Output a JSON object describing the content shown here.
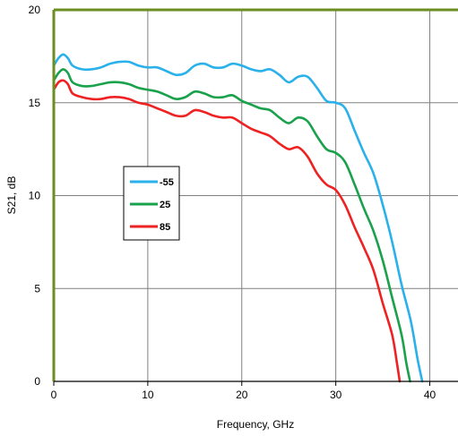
{
  "chart_data": {
    "type": "line",
    "title": "",
    "xlabel": "Frequency, GHz",
    "ylabel": "S21, dB",
    "xlim": [
      0,
      43
    ],
    "ylim": [
      0,
      20
    ],
    "x_ticks": [
      0,
      10,
      20,
      30,
      40
    ],
    "y_ticks": [
      0,
      5,
      10,
      15,
      20
    ],
    "grid": "vertical and horizontal",
    "legend_position": "left-middle",
    "colors": {
      "axis": "#6b8e23",
      "grid": "#808080"
    },
    "series": [
      {
        "name": "-55",
        "color": "#2ab0ea",
        "points": [
          [
            0,
            17.0
          ],
          [
            0.5,
            17.4
          ],
          [
            1,
            17.6
          ],
          [
            1.5,
            17.4
          ],
          [
            2,
            17.0
          ],
          [
            3,
            16.8
          ],
          [
            4,
            16.8
          ],
          [
            5,
            16.9
          ],
          [
            6,
            17.1
          ],
          [
            7,
            17.2
          ],
          [
            8,
            17.2
          ],
          [
            9,
            17.0
          ],
          [
            10,
            16.9
          ],
          [
            11,
            16.9
          ],
          [
            12,
            16.7
          ],
          [
            13,
            16.5
          ],
          [
            14,
            16.6
          ],
          [
            15,
            17.0
          ],
          [
            16,
            17.1
          ],
          [
            17,
            16.9
          ],
          [
            18,
            16.9
          ],
          [
            19,
            17.1
          ],
          [
            20,
            17.0
          ],
          [
            21,
            16.8
          ],
          [
            22,
            16.7
          ],
          [
            23,
            16.8
          ],
          [
            24,
            16.5
          ],
          [
            25,
            16.1
          ],
          [
            26,
            16.4
          ],
          [
            27,
            16.4
          ],
          [
            28,
            15.8
          ],
          [
            29,
            15.1
          ],
          [
            30,
            15.0
          ],
          [
            31,
            14.7
          ],
          [
            32,
            13.5
          ],
          [
            33,
            12.3
          ],
          [
            34,
            11.2
          ],
          [
            35,
            9.5
          ],
          [
            36,
            7.5
          ],
          [
            37,
            5.2
          ],
          [
            38,
            3.2
          ],
          [
            38.7,
            1.2
          ],
          [
            39.2,
            0.0
          ]
        ]
      },
      {
        "name": "25",
        "color": "#1aa14b",
        "points": [
          [
            0,
            16.2
          ],
          [
            0.5,
            16.6
          ],
          [
            1,
            16.8
          ],
          [
            1.5,
            16.6
          ],
          [
            2,
            16.1
          ],
          [
            3,
            15.9
          ],
          [
            4,
            15.9
          ],
          [
            5,
            16.0
          ],
          [
            6,
            16.1
          ],
          [
            7,
            16.1
          ],
          [
            8,
            16.0
          ],
          [
            9,
            15.8
          ],
          [
            10,
            15.7
          ],
          [
            11,
            15.6
          ],
          [
            12,
            15.4
          ],
          [
            13,
            15.2
          ],
          [
            14,
            15.3
          ],
          [
            15,
            15.6
          ],
          [
            16,
            15.5
          ],
          [
            17,
            15.3
          ],
          [
            18,
            15.3
          ],
          [
            19,
            15.4
          ],
          [
            20,
            15.1
          ],
          [
            21,
            14.9
          ],
          [
            22,
            14.7
          ],
          [
            23,
            14.6
          ],
          [
            24,
            14.2
          ],
          [
            25,
            13.9
          ],
          [
            26,
            14.2
          ],
          [
            27,
            14.0
          ],
          [
            28,
            13.2
          ],
          [
            29,
            12.5
          ],
          [
            30,
            12.3
          ],
          [
            31,
            11.8
          ],
          [
            32,
            10.6
          ],
          [
            33,
            9.3
          ],
          [
            34,
            8.1
          ],
          [
            35,
            6.5
          ],
          [
            36,
            4.5
          ],
          [
            37,
            2.5
          ],
          [
            37.5,
            1.0
          ],
          [
            37.9,
            0.0
          ]
        ]
      },
      {
        "name": "85",
        "color": "#ee2222",
        "points": [
          [
            0,
            15.7
          ],
          [
            0.5,
            16.1
          ],
          [
            1,
            16.2
          ],
          [
            1.5,
            16.0
          ],
          [
            2,
            15.5
          ],
          [
            3,
            15.3
          ],
          [
            4,
            15.2
          ],
          [
            5,
            15.2
          ],
          [
            6,
            15.3
          ],
          [
            7,
            15.3
          ],
          [
            8,
            15.2
          ],
          [
            9,
            15.0
          ],
          [
            10,
            14.9
          ],
          [
            11,
            14.7
          ],
          [
            12,
            14.5
          ],
          [
            13,
            14.3
          ],
          [
            14,
            14.3
          ],
          [
            15,
            14.6
          ],
          [
            16,
            14.5
          ],
          [
            17,
            14.3
          ],
          [
            18,
            14.2
          ],
          [
            19,
            14.2
          ],
          [
            20,
            13.9
          ],
          [
            21,
            13.6
          ],
          [
            22,
            13.4
          ],
          [
            23,
            13.2
          ],
          [
            24,
            12.8
          ],
          [
            25,
            12.5
          ],
          [
            26,
            12.6
          ],
          [
            27,
            12.1
          ],
          [
            28,
            11.2
          ],
          [
            29,
            10.6
          ],
          [
            30,
            10.3
          ],
          [
            31,
            9.5
          ],
          [
            32,
            8.3
          ],
          [
            33,
            7.2
          ],
          [
            34,
            6.0
          ],
          [
            35,
            4.2
          ],
          [
            36,
            2.5
          ],
          [
            36.5,
            1.0
          ],
          [
            36.8,
            0.0
          ]
        ]
      }
    ]
  }
}
